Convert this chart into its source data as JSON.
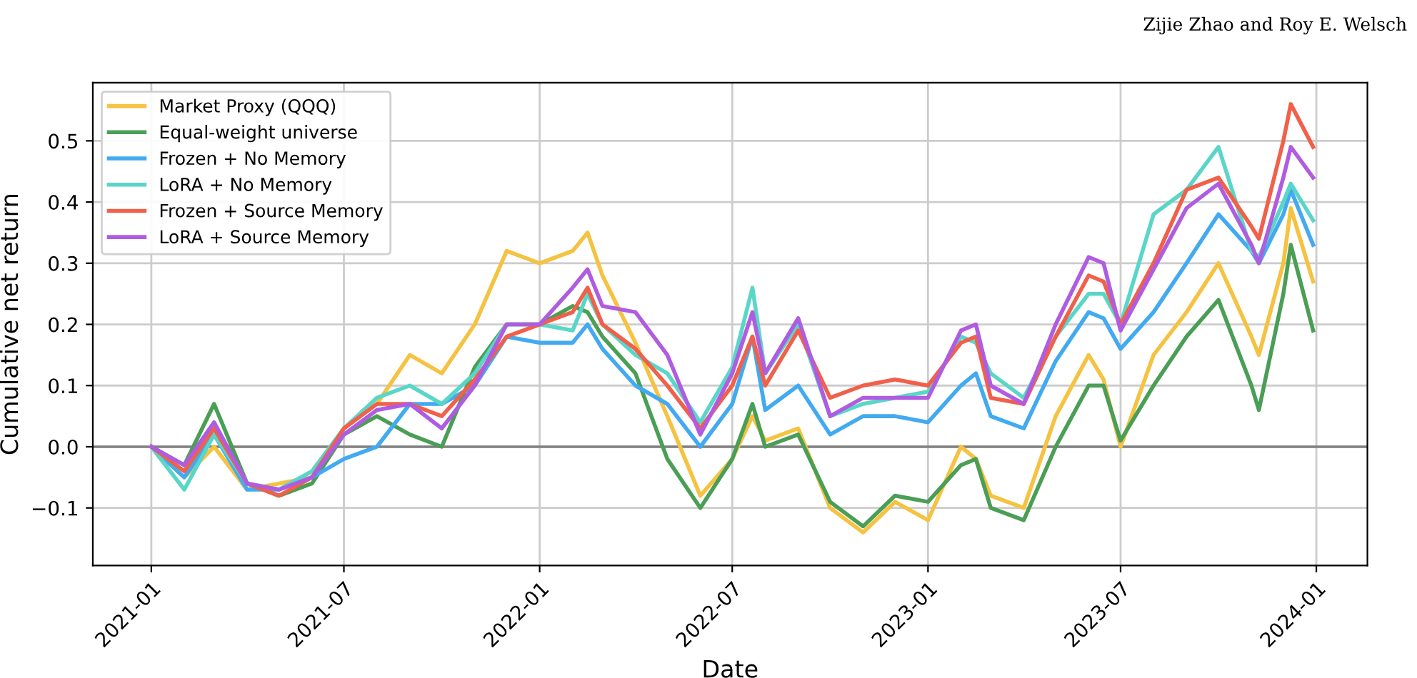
{
  "chart_data": {
    "type": "line",
    "xlabel": "Date",
    "ylabel": "Cumulative net return",
    "annotations": [
      "Zijie Zhao and Roy E. Welsch"
    ],
    "x": [
      "2021-01-01",
      "2021-02-01",
      "2021-03-01",
      "2021-04-01",
      "2021-05-01",
      "2021-06-01",
      "2021-07-01",
      "2021-08-01",
      "2021-09-01",
      "2021-10-01",
      "2021-11-01",
      "2021-12-01",
      "2022-01-01",
      "2022-02-01",
      "2022-02-15",
      "2022-03-01",
      "2022-04-01",
      "2022-05-01",
      "2022-06-01",
      "2022-07-01",
      "2022-07-20",
      "2022-08-01",
      "2022-09-01",
      "2022-10-01",
      "2022-11-01",
      "2022-12-01",
      "2023-01-01",
      "2023-02-01",
      "2023-02-15",
      "2023-03-01",
      "2023-04-01",
      "2023-05-01",
      "2023-06-01",
      "2023-06-15",
      "2023-07-01",
      "2023-08-01",
      "2023-09-01",
      "2023-10-01",
      "2023-11-01",
      "2023-11-08",
      "2023-12-01",
      "2023-12-08",
      "2023-12-29"
    ],
    "series": [
      {
        "name": "Market Proxy (QQQ)",
        "color": "#f5c242",
        "values": [
          0.0,
          -0.05,
          0.0,
          -0.07,
          -0.06,
          -0.05,
          0.03,
          0.07,
          0.15,
          0.12,
          0.2,
          0.32,
          0.3,
          0.32,
          0.35,
          0.28,
          0.17,
          0.05,
          -0.08,
          -0.02,
          0.05,
          0.01,
          0.03,
          -0.1,
          -0.14,
          -0.09,
          -0.12,
          0.0,
          -0.02,
          -0.08,
          -0.1,
          0.05,
          0.15,
          0.11,
          0.0,
          0.15,
          0.22,
          0.3,
          0.18,
          0.15,
          0.3,
          0.39,
          0.27
        ]
      },
      {
        "name": "Equal-weight universe",
        "color": "#4a9e55",
        "values": [
          0.0,
          -0.03,
          0.07,
          -0.06,
          -0.08,
          -0.06,
          0.02,
          0.05,
          0.02,
          0.0,
          0.13,
          0.2,
          0.2,
          0.23,
          0.22,
          0.18,
          0.12,
          -0.02,
          -0.1,
          -0.02,
          0.07,
          0.0,
          0.02,
          -0.09,
          -0.13,
          -0.08,
          -0.09,
          -0.03,
          -0.02,
          -0.1,
          -0.12,
          0.0,
          0.1,
          0.1,
          0.01,
          0.1,
          0.18,
          0.24,
          0.1,
          0.06,
          0.25,
          0.33,
          0.19
        ]
      },
      {
        "name": "Frozen + No Memory",
        "color": "#42aaf0",
        "values": [
          0.0,
          -0.05,
          0.02,
          -0.07,
          -0.07,
          -0.05,
          -0.02,
          0.0,
          0.07,
          0.07,
          0.1,
          0.18,
          0.17,
          0.17,
          0.2,
          0.16,
          0.1,
          0.07,
          0.0,
          0.07,
          0.18,
          0.06,
          0.1,
          0.02,
          0.05,
          0.05,
          0.04,
          0.1,
          0.12,
          0.05,
          0.03,
          0.14,
          0.22,
          0.21,
          0.16,
          0.22,
          0.3,
          0.38,
          0.32,
          0.3,
          0.38,
          0.42,
          0.33
        ]
      },
      {
        "name": "LoRA + No Memory",
        "color": "#5ad6c8",
        "values": [
          0.0,
          -0.07,
          0.02,
          -0.06,
          -0.07,
          -0.04,
          0.03,
          0.08,
          0.1,
          0.07,
          0.12,
          0.2,
          0.2,
          0.19,
          0.25,
          0.2,
          0.15,
          0.12,
          0.04,
          0.13,
          0.26,
          0.12,
          0.2,
          0.05,
          0.07,
          0.08,
          0.09,
          0.18,
          0.17,
          0.12,
          0.08,
          0.18,
          0.25,
          0.25,
          0.2,
          0.38,
          0.42,
          0.49,
          0.32,
          0.31,
          0.4,
          0.43,
          0.37
        ]
      },
      {
        "name": "Frozen + Source Memory",
        "color": "#f0604a",
        "values": [
          0.0,
          -0.04,
          0.03,
          -0.06,
          -0.08,
          -0.05,
          0.03,
          0.07,
          0.07,
          0.05,
          0.11,
          0.18,
          0.2,
          0.22,
          0.26,
          0.2,
          0.16,
          0.1,
          0.03,
          0.1,
          0.18,
          0.1,
          0.19,
          0.08,
          0.1,
          0.11,
          0.1,
          0.17,
          0.18,
          0.08,
          0.07,
          0.18,
          0.28,
          0.27,
          0.2,
          0.3,
          0.42,
          0.44,
          0.36,
          0.34,
          0.5,
          0.56,
          0.49
        ]
      },
      {
        "name": "LoRA + Source Memory",
        "color": "#b05ce0",
        "values": [
          0.0,
          -0.03,
          0.04,
          -0.06,
          -0.07,
          -0.05,
          0.02,
          0.06,
          0.07,
          0.03,
          0.1,
          0.2,
          0.2,
          0.26,
          0.29,
          0.23,
          0.22,
          0.15,
          0.02,
          0.12,
          0.22,
          0.12,
          0.21,
          0.05,
          0.08,
          0.08,
          0.08,
          0.19,
          0.2,
          0.1,
          0.07,
          0.2,
          0.31,
          0.3,
          0.19,
          0.29,
          0.39,
          0.43,
          0.33,
          0.3,
          0.44,
          0.49,
          0.44
        ]
      }
    ],
    "xlim": [
      "2020-11-07",
      "2024-02-18"
    ],
    "xticks": [
      "2021-01",
      "2021-07",
      "2022-01",
      "2022-07",
      "2023-01",
      "2023-07",
      "2024-01"
    ],
    "ylim": [
      -0.194,
      0.595
    ],
    "yticks": [
      {
        "value": -0.1,
        "label": "−0.1"
      },
      {
        "value": 0.0,
        "label": "0.0"
      },
      {
        "value": 0.1,
        "label": "0.1"
      },
      {
        "value": 0.2,
        "label": "0.2"
      },
      {
        "value": 0.3,
        "label": "0.3"
      },
      {
        "value": 0.4,
        "label": "0.4"
      },
      {
        "value": 0.5,
        "label": "0.5"
      }
    ],
    "ref_lines": [
      {
        "axis": "y",
        "value": 0,
        "color": "#808080"
      }
    ],
    "grid": true,
    "legend": "top left",
    "line_style": "solid",
    "marker": "none"
  }
}
